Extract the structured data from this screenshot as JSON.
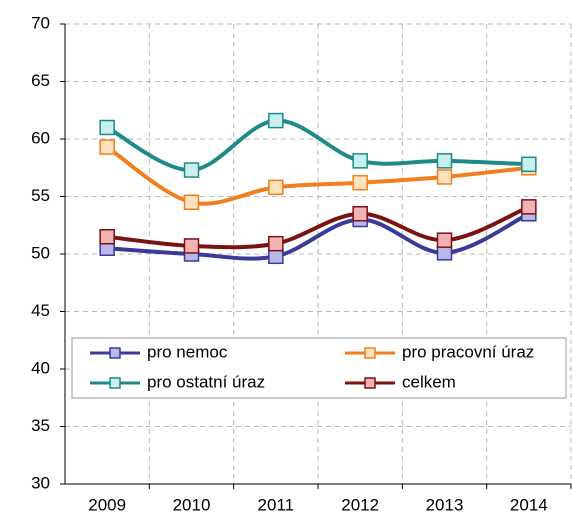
{
  "chart_data": {
    "type": "line",
    "categories": [
      "2009",
      "2010",
      "2011",
      "2012",
      "2013",
      "2014"
    ],
    "series": [
      {
        "name": "pro nemoc",
        "color": "#3a3a98",
        "marker_color": "#b8b8ea",
        "values": [
          50.5,
          50.0,
          49.8,
          53.0,
          50.1,
          53.5
        ]
      },
      {
        "name": "pro pracovní úraz",
        "color": "#f27f1e",
        "marker_color": "#fde2bd",
        "values": [
          59.3,
          54.5,
          55.8,
          56.2,
          56.7,
          57.5
        ]
      },
      {
        "name": "pro ostatní úraz",
        "color": "#1e8a8a",
        "marker_color": "#c8f0ee",
        "values": [
          61.0,
          57.3,
          61.6,
          58.1,
          58.1,
          57.8
        ]
      },
      {
        "name": "celkem",
        "color": "#7a1212",
        "marker_color": "#f0b2b2",
        "values": [
          51.5,
          50.7,
          50.9,
          53.5,
          51.2,
          54.1
        ]
      }
    ],
    "ylim": [
      30,
      70
    ],
    "yticks": [
      30,
      35,
      40,
      45,
      50,
      55,
      60,
      65,
      70
    ],
    "grid": true,
    "smooth": true
  }
}
